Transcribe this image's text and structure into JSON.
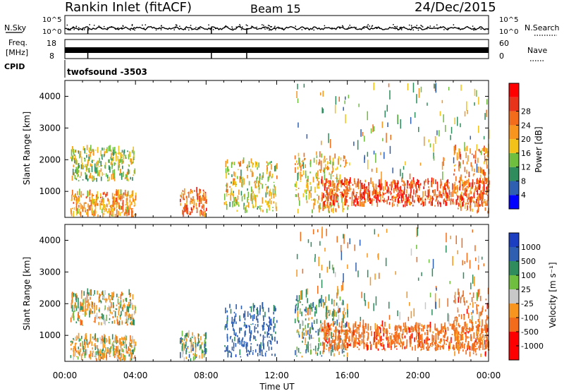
{
  "header": {
    "station": "Rankin Inlet (fitACF)",
    "beam": "Beam 15",
    "date": "24/Dec/2015"
  },
  "strip_noise": {
    "left_label": "N.Sky",
    "right_label": "N.Search",
    "left_ticks": [
      "10^5",
      "10^0"
    ],
    "right_ticks": [
      "10^5",
      "10^0"
    ]
  },
  "strip_freq": {
    "left_label_1": "Freq.",
    "left_label_2": "[MHz]",
    "right_label": "Nave",
    "left_ticks": [
      "18",
      "8"
    ],
    "right_ticks": [
      "60",
      "0"
    ]
  },
  "strip_cpid": {
    "label": "CPID",
    "program": "twofsound  -3503"
  },
  "x_axis": {
    "title": "Time UT",
    "ticks": [
      "00:00",
      "04:00",
      "08:00",
      "12:00",
      "16:00",
      "20:00",
      "00:00"
    ]
  },
  "colors": {
    "power_scale": [
      "#0000ff",
      "#2e5fb0",
      "#2f8c5c",
      "#6fbe3f",
      "#f2c21a",
      "#f7951e",
      "#f26c1c",
      "#e8341b",
      "#ff0000"
    ],
    "velocity_scale": [
      "#ff0000",
      "#f26c1c",
      "#f7951e",
      "#c8c8c8",
      "#6fbe3f",
      "#2f8c5c",
      "#2e5fb0",
      "#1c3fc2"
    ]
  },
  "chart_data": [
    {
      "type": "heatmap",
      "name": "power",
      "ylabel": "Slant Range [km]",
      "xlabel": "",
      "ylim": [
        180,
        4500
      ],
      "xlim_hours": [
        0,
        24
      ],
      "yticks": [
        "1000",
        "2000",
        "3000",
        "4000"
      ],
      "colorbar": {
        "label": "Power [dB]",
        "range": [
          0,
          32
        ],
        "ticks": [
          "4",
          "8",
          "12",
          "16",
          "20",
          "24",
          "28"
        ]
      },
      "regions": [
        {
          "t0": 0.3,
          "t1": 4.0,
          "r0": 1300,
          "r1": 2300,
          "level": 14
        },
        {
          "t0": 0.3,
          "t1": 4.0,
          "r0": 180,
          "r1": 900,
          "level": 20
        },
        {
          "t0": 6.5,
          "t1": 8.0,
          "r0": 180,
          "r1": 1000,
          "level": 24
        },
        {
          "t0": 9.0,
          "t1": 12.0,
          "r0": 300,
          "r1": 1900,
          "level": 16
        },
        {
          "t0": 13.0,
          "t1": 16.0,
          "r0": 300,
          "r1": 2100,
          "level": 18
        },
        {
          "t0": 14.5,
          "t1": 24.0,
          "r0": 500,
          "r1": 1300,
          "level": 26
        },
        {
          "t0": 22.0,
          "t1": 24.0,
          "r0": 300,
          "r1": 2300,
          "level": 22
        }
      ]
    },
    {
      "type": "heatmap",
      "name": "velocity",
      "ylabel": "Slant Range [km]",
      "xlabel": "Time UT",
      "ylim": [
        180,
        4500
      ],
      "xlim_hours": [
        0,
        24
      ],
      "yticks": [
        "1000",
        "2000",
        "3000",
        "4000"
      ],
      "colorbar": {
        "label": "Velocity [m s⁻¹]",
        "ticks": [
          "1000",
          "500",
          "100",
          "25",
          "-25",
          "-100",
          "-500",
          "-1000"
        ]
      },
      "regions": [
        {
          "t0": 0.3,
          "t1": 4.0,
          "r0": 1300,
          "r1": 2300,
          "level": -100
        },
        {
          "t0": 0.3,
          "t1": 4.0,
          "r0": 180,
          "r1": 900,
          "level": -100
        },
        {
          "t0": 6.5,
          "t1": 8.0,
          "r0": 180,
          "r1": 1000,
          "level": 100
        },
        {
          "t0": 9.0,
          "t1": 12.0,
          "r0": 300,
          "r1": 1900,
          "level": 500
        },
        {
          "t0": 13.0,
          "t1": 16.0,
          "r0": 300,
          "r1": 2100,
          "level": 100
        },
        {
          "t0": 14.5,
          "t1": 24.0,
          "r0": 500,
          "r1": 1300,
          "level": -500
        },
        {
          "t0": 22.0,
          "t1": 24.0,
          "r0": 300,
          "r1": 2300,
          "level": -500
        }
      ]
    }
  ]
}
